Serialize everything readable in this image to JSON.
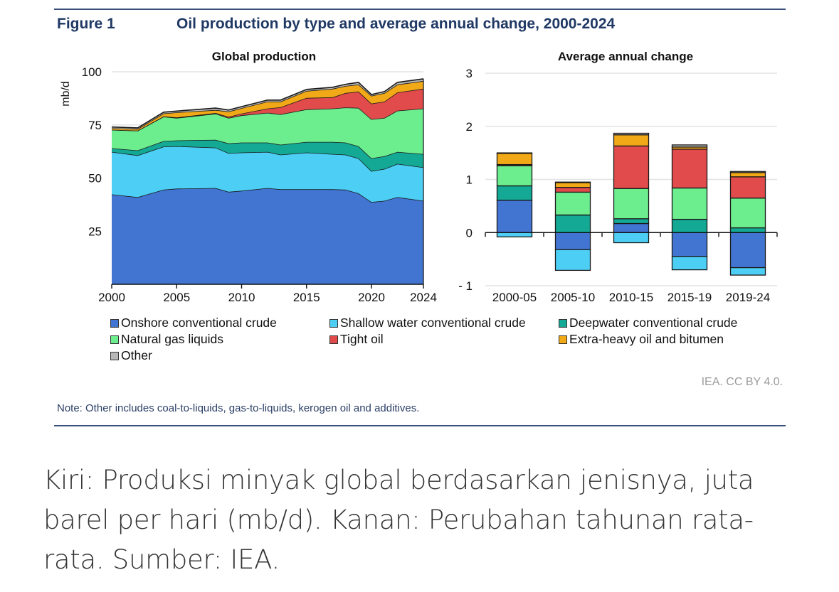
{
  "figure": {
    "label": "Figure 1",
    "title": "Oil production by type and average annual change, 2000-2024",
    "note": "Note: Other includes coal-to-liquids, gas-to-liquids, kerogen oil and additives.",
    "credit": "IEA. CC BY 4.0.",
    "caption": "Kiri: Produksi minyak global berdasarkan jenisnya, juta barel per hari (mb/d). Kanan: Perubahan tahunan rata-rata. Sumber: IEA."
  },
  "colors": {
    "title": "#1f3864",
    "rule": "#3a4f7a",
    "onshore": "#4275d2",
    "shallow": "#4dcff5",
    "deepwater": "#14a995",
    "ngl": "#6ced8e",
    "tight": "#e24b4b",
    "extraheavy": "#f2a917",
    "other": "#b8b8b8"
  },
  "legend": [
    {
      "key": "onshore",
      "label": "Onshore conventional crude"
    },
    {
      "key": "shallow",
      "label": "Shallow water conventional crude"
    },
    {
      "key": "deepwater",
      "label": "Deepwater conventional crude"
    },
    {
      "key": "ngl",
      "label": "Natural gas liquids"
    },
    {
      "key": "tight",
      "label": "Tight oil"
    },
    {
      "key": "extraheavy",
      "label": "Extra-heavy oil and bitumen"
    },
    {
      "key": "other",
      "label": "Other"
    }
  ],
  "chart_data": [
    {
      "type": "area",
      "stacked": true,
      "title": "Global production",
      "xlabel": "",
      "ylabel": "mb/d",
      "ylim": [
        0,
        100
      ],
      "yticks": [
        25,
        50,
        75,
        100
      ],
      "xticks": [
        2000,
        2005,
        2010,
        2015,
        2020,
        2024
      ],
      "grid": true,
      "x": [
        2000,
        2002,
        2004,
        2005,
        2008,
        2009,
        2010,
        2012,
        2013,
        2015,
        2017,
        2018,
        2019,
        2020,
        2021,
        2022,
        2024
      ],
      "series": [
        {
          "key": "onshore",
          "name": "Onshore conventional crude",
          "values": [
            42.3,
            41.0,
            44.5,
            45.0,
            45.3,
            43.5,
            44.0,
            45.3,
            44.7,
            44.7,
            44.7,
            44.5,
            42.8,
            38.7,
            39.3,
            41.0,
            39.3
          ]
        },
        {
          "key": "shallow",
          "name": "Shallow water conventional crude",
          "values": [
            20.0,
            19.7,
            20.3,
            20.0,
            19.0,
            18.2,
            18.0,
            17.0,
            16.3,
            17.3,
            16.6,
            16.5,
            16.5,
            14.6,
            15.0,
            15.7,
            15.7
          ]
        },
        {
          "key": "deepwater",
          "name": "Deepwater conventional crude",
          "values": [
            1.7,
            2.3,
            2.6,
            2.7,
            3.7,
            4.6,
            4.7,
            4.4,
            4.7,
            5.0,
            5.7,
            5.7,
            5.7,
            6.0,
            6.0,
            5.6,
            6.3
          ]
        },
        {
          "key": "ngl",
          "name": "Natural gas liquids",
          "values": [
            8.7,
            9.3,
            11.5,
            10.6,
            12.3,
            12.0,
            12.8,
            14.0,
            14.3,
            15.3,
            15.7,
            16.5,
            18.0,
            18.4,
            18.0,
            19.4,
            21.4
          ]
        },
        {
          "key": "tight",
          "name": "Tight oil",
          "values": [
            0.0,
            0.0,
            0.1,
            0.2,
            0.3,
            0.5,
            0.8,
            2.0,
            3.3,
            5.4,
            5.3,
            6.8,
            7.7,
            7.3,
            7.7,
            8.6,
            9.3
          ]
        },
        {
          "key": "extraheavy",
          "name": "Extra-heavy oil and bitumen",
          "values": [
            0.7,
            0.8,
            1.4,
            2.4,
            1.4,
            2.5,
            2.6,
            3.3,
            2.7,
            3.3,
            4.0,
            3.3,
            3.3,
            3.7,
            4.0,
            3.7,
            3.7
          ]
        },
        {
          "key": "other",
          "name": "Other",
          "values": [
            0.6,
            0.5,
            0.6,
            0.6,
            0.9,
            0.7,
            0.7,
            0.7,
            0.7,
            0.7,
            0.7,
            0.8,
            1.0,
            0.6,
            0.7,
            1.0,
            1.0
          ]
        }
      ]
    },
    {
      "type": "bar",
      "stacked": true,
      "title": "Average annual change",
      "xlabel": "",
      "ylabel": "",
      "ylim": [
        -1,
        3
      ],
      "yticks": [
        -1,
        0,
        1,
        2,
        3
      ],
      "ytick_labels": [
        "- 1",
        "0",
        "1",
        "2",
        "3"
      ],
      "grid": true,
      "categories": [
        "2000-05",
        "2005-10",
        "2010-15",
        "2015-19",
        "2019-24"
      ],
      "series": [
        {
          "key": "onshore",
          "name": "Onshore conventional crude",
          "values": [
            0.61,
            -0.32,
            0.17,
            -0.45,
            -0.66
          ]
        },
        {
          "key": "shallow",
          "name": "Shallow water conventional crude",
          "values": [
            -0.08,
            -0.39,
            -0.19,
            -0.25,
            -0.14
          ]
        },
        {
          "key": "deepwater",
          "name": "Deepwater conventional crude",
          "values": [
            0.27,
            0.33,
            0.09,
            0.25,
            0.09
          ]
        },
        {
          "key": "ngl",
          "name": "Natural gas liquids",
          "values": [
            0.38,
            0.43,
            0.57,
            0.59,
            0.56
          ]
        },
        {
          "key": "tight",
          "name": "Tight oil",
          "values": [
            0.02,
            0.09,
            0.8,
            0.73,
            0.4
          ]
        },
        {
          "key": "extraheavy",
          "name": "Extra-heavy oil and bitumen",
          "values": [
            0.21,
            0.09,
            0.21,
            0.04,
            0.08
          ]
        },
        {
          "key": "other",
          "name": "Other",
          "values": [
            0.01,
            0.01,
            0.03,
            0.04,
            0.02
          ]
        }
      ]
    }
  ]
}
